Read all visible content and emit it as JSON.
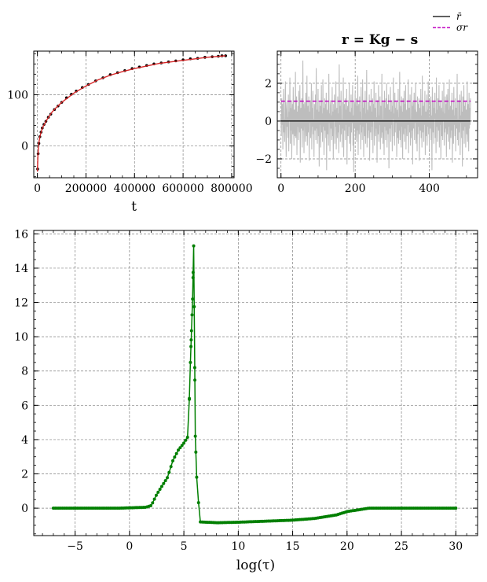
{
  "colors": {
    "data_points": "#000000",
    "fit_line": "#d62728",
    "residual": "#bdbdbd",
    "mean_line": "#000000",
    "sigma_line": "#c000c0",
    "distribution": "#007f00",
    "grid": "#808080"
  },
  "chart_data": [
    {
      "id": "data-fit",
      "type": "line",
      "xlabel": "t",
      "ylabel": "",
      "xlim": [
        -15000,
        810000
      ],
      "ylim": [
        -62,
        185
      ],
      "xticks": [
        0,
        200000,
        400000,
        600000,
        800000
      ],
      "xtick_labels": [
        "0",
        "200000",
        "400000",
        "600000",
        "800000"
      ],
      "yticks": [
        0,
        100
      ],
      "ytick_labels": [
        "0",
        "100"
      ],
      "grid": true,
      "series": [
        {
          "kind": "points",
          "x": [
            1000,
            3000,
            6000,
            10000,
            15000,
            20000,
            27000,
            35000,
            45000,
            55000,
            70000,
            85000,
            100000,
            120000,
            140000,
            160000,
            185000,
            210000,
            240000,
            270000,
            300000,
            330000,
            360000,
            390000,
            420000,
            450000,
            480000,
            510000,
            540000,
            570000,
            600000,
            630000,
            660000,
            690000,
            720000,
            745000,
            760000,
            775000
          ],
          "y": [
            -45,
            -15,
            5,
            18,
            27,
            35,
            42,
            48,
            56,
            62,
            71,
            78,
            85,
            94,
            101,
            107,
            114,
            120,
            127,
            133,
            139,
            143,
            147,
            151,
            154,
            157,
            160,
            162,
            164,
            166,
            168,
            170,
            171,
            173,
            174,
            175,
            176,
            176
          ]
        },
        {
          "kind": "fit",
          "x": [
            0,
            2000,
            5000,
            10000,
            20000,
            40000,
            60000,
            80000,
            100000,
            150000,
            200000,
            250000,
            300000,
            350000,
            400000,
            450000,
            500000,
            550000,
            600000,
            650000,
            700000,
            750000,
            775000
          ],
          "y": [
            -50,
            -20,
            3,
            18,
            35,
            52,
            66,
            76,
            85,
            103,
            117,
            129,
            138,
            145,
            151,
            156,
            161,
            164,
            167,
            170,
            173,
            175,
            176
          ]
        }
      ]
    },
    {
      "id": "residuals",
      "type": "line",
      "title": "r = Kg − s",
      "xlabel": "",
      "ylabel": "",
      "xlim": [
        -10,
        530
      ],
      "ylim": [
        -3.0,
        3.7
      ],
      "xticks": [
        0,
        200,
        400
      ],
      "xtick_labels": [
        "0",
        "200",
        "400"
      ],
      "yticks": [
        -2,
        0,
        2
      ],
      "ytick_labels": [
        "−2",
        "0",
        "2"
      ],
      "grid": true,
      "n_points": 512,
      "mean": 0.0,
      "sigma": 1.05,
      "legend": {
        "placement": "top-right",
        "entries": [
          "r̄",
          "σr"
        ]
      },
      "residual_values": [
        0.3,
        -0.8,
        1.2,
        -0.2,
        0.9,
        -1.5,
        0.4,
        1.7,
        -0.6,
        0.1,
        -1.1,
        0.8,
        2.1,
        -0.4,
        -1.9,
        0.6,
        1.0,
        -0.3,
        0.2,
        -0.9,
        1.4,
        -1.6,
        0.5,
        0.0,
        2.3,
        -1.2,
        0.7,
        -0.5,
        1.1,
        -2.0,
        0.3,
        0.9,
        -0.7,
        1.8,
        -0.1,
        -1.3,
        0.6,
        0.4,
        -0.8,
        2.6,
        -0.9,
        0.2,
        1.3,
        -1.8,
        0.5,
        -0.3,
        0.8,
        -1.0,
        1.6,
        0.1,
        -0.6,
        1.9,
        -2.2,
        0.4,
        0.7,
        -0.4,
        1.2,
        -1.4,
        0.0,
        3.2,
        -0.5,
        0.9,
        -1.7,
        0.3,
        1.0,
        -0.2,
        -1.1,
        1.5,
        0.6,
        -0.8,
        2.4,
        -1.3,
        0.2,
        0.8,
        -0.6,
        1.3,
        -2.1,
        0.5,
        -0.1,
        1.1,
        -0.9,
        0.4,
        2.0,
        -1.5,
        0.7,
        -0.3,
        1.6,
        -0.7,
        0.1,
        -1.9,
        0.9,
        0.3,
        -0.5,
        1.4,
        -1.0,
        2.8,
        -0.4,
        0.6,
        -1.2,
        0.2,
        1.7,
        -0.8,
        0.5,
        -2.4,
        1.0,
        -0.2,
        0.8,
        -1.4,
        0.3,
        1.9,
        -0.6,
        0.4,
        -1.1,
        2.2,
        -0.3,
        0.7,
        -1.8,
        0.1,
        1.2,
        -0.5,
        0.9,
        -0.9,
        1.5,
        -2.6,
        0.6,
        0.2,
        -0.7,
        1.0,
        -1.3,
        2.5,
        -0.1,
        0.4,
        -1.6,
        0.8,
        1.1,
        -0.4,
        0.3,
        -1.0,
        1.8,
        -0.8,
        0.5,
        -2.0,
        0.9,
        0.0,
        1.4,
        -1.2,
        0.6,
        -0.3,
        2.1,
        -1.5,
        0.2,
        0.7,
        -0.9,
        1.3,
        -0.6,
        0.4,
        -1.7,
        3.0,
        -0.2,
        0.8,
        -1.1,
        0.5,
        1.6,
        -0.7,
        0.1,
        -1.4,
        1.0,
        -0.4,
        2.3,
        -1.9,
        0.3,
        0.9,
        -0.5,
        1.2,
        -1.0,
        0.6,
        -0.2,
        1.7,
        -2.3,
        0.4,
        0.8,
        -0.8,
        1.1,
        -0.3,
        2.0,
        -1.2,
        0.5,
        0.2,
        -1.6,
        1.4,
        -0.6,
        0.7,
        -0.1,
        1.9,
        -1.3,
        0.3,
        -2.7,
        1.0,
        0.6,
        -0.4,
        1.5,
        -0.9,
        0.2,
        1.2,
        -1.1,
        0.8,
        -0.5,
        2.4,
        -1.8,
        0.4,
        0.9,
        -0.7,
        1.3,
        -0.2,
        0.5,
        -1.5,
        1.8,
        -0.6,
        0.1,
        -1.0,
        2.2,
        -0.3,
        0.7,
        -1.9,
        1.1,
        0.3,
        -0.8,
        1.6,
        -1.2,
        0.4,
        -0.1,
        2.7,
        -1.4,
        0.6,
        0.2,
        -0.9,
        1.0,
        -0.5,
        1.4,
        -2.1,
        0.8,
        0.3,
        -0.6,
        1.7,
        -1.0,
        0.5,
        -0.3,
        1.2,
        -1.7,
        0.9,
        0.0,
        2.1,
        -1.3,
        0.4,
        0.7,
        -0.8,
        1.5,
        -0.4,
        0.2,
        -2.2,
        1.1,
        0.6,
        -0.7,
        1.9,
        -1.1,
        0.3,
        -0.2,
        1.3,
        -1.5,
        0.8,
        0.5,
        -0.9,
        2.5,
        -0.6,
        0.1,
        -1.2,
        1.0,
        0.4,
        -1.8,
        1.6,
        -0.3,
        0.7,
        -1.0,
        1.2,
        -0.5,
        2.0,
        -1.4,
        0.2,
        0.9,
        -0.7,
        1.4,
        -2.5,
        0.6,
        0.3,
        -0.4,
        1.8,
        -1.1,
        0.5,
        -0.2,
        1.1,
        -1.6,
        0.8,
        0.1,
        2.3,
        -0.8,
        0.4,
        -1.3,
        1.5,
        -0.6,
        0.7,
        -0.1,
        1.0,
        -1.9,
        0.3,
        0.6,
        -0.9,
        1.7,
        -1.2,
        0.2,
        -0.5,
        2.6,
        -1.0,
        0.8,
        0.4,
        -1.4,
        1.3,
        -0.3,
        0.5,
        -2.0,
        1.2,
        0.0,
        -0.7,
        1.6,
        -1.1,
        0.9,
        -0.4,
        1.9,
        -1.5,
        0.3,
        0.6,
        -0.8,
        1.1,
        -0.2,
        2.2,
        -1.7,
        0.4,
        0.7,
        -0.6,
        1.4,
        -1.3,
        0.1,
        -0.9,
        1.8,
        -0.5,
        0.8,
        -2.3,
        1.0,
        0.3,
        -0.4,
        1.5,
        -1.0,
        0.6,
        -0.1,
        2.0,
        -1.2,
        0.5,
        0.2,
        -1.6,
        1.3,
        -0.7,
        0.9,
        -0.3,
        1.2,
        -2.1,
        0.4,
        0.7,
        -0.5,
        1.7,
        -0.9,
        0.3,
        -1.4,
        2.4,
        -0.6,
        0.1,
        0.8,
        -1.1,
        1.0,
        -0.2,
        1.6,
        -1.8,
        0.5,
        0.4,
        -0.8,
        1.4,
        -1.3,
        0.6,
        -0.3,
        2.1,
        -0.7,
        0.2,
        -1.5,
        1.1,
        0.9,
        -0.4,
        1.3,
        -1.0,
        0.3,
        -2.6,
        1.8,
        0.5,
        -0.6,
        1.0,
        -1.2,
        0.7,
        0.1,
        1.5,
        -0.9,
        0.4,
        -1.7,
        2.3,
        -0.3,
        0.6,
        -1.1,
        1.2,
        0.2,
        -0.5,
        1.9,
        -1.4,
        0.8,
        -0.2,
        1.1,
        -2.0,
        0.3,
        0.7,
        -0.8,
        1.6,
        -1.0,
        0.5,
        0.0,
        2.0,
        -1.3,
        0.4,
        -0.6,
        1.3,
        -0.4,
        0.9,
        -1.9,
        1.4,
        0.1,
        -0.7,
        1.7,
        -1.1,
        0.6,
        -0.3,
        2.2,
        -1.5,
        0.2,
        0.8,
        -0.9,
        1.0,
        -0.5,
        1.5,
        -2.2,
        0.4,
        0.6,
        -1.2,
        1.8,
        -0.2,
        0.3,
        -0.8,
        1.2,
        -1.6,
        0.7,
        0.5,
        -0.4,
        2.5,
        -1.0,
        0.1,
        -1.3,
        1.1,
        0.9,
        -0.6,
        1.4,
        -1.8,
        0.3,
        -0.1,
        1.6,
        -0.9,
        0.5,
        -2.4,
        1.3,
        0.2,
        -0.5,
        1.9,
        -1.2,
        0.8,
        -0.3,
        1.0,
        -1.4,
        0.6,
        0.4,
        -0.7,
        2.1,
        -1.1,
        0.2,
        0.9,
        -1.6,
        1.5,
        -0.4,
        0.7,
        -0.2,
        1.2,
        -1.9,
        0.5,
        0.3,
        -0.8,
        1.7,
        -1.0,
        0.6,
        -0.1,
        1.4,
        -1.3,
        0.4,
        0.2,
        -0.6,
        1.1,
        -0.5,
        0.8,
        -1.2,
        0.9,
        -0.3
      ]
    },
    {
      "id": "distribution",
      "type": "line",
      "xlabel": "log(τ)",
      "ylabel": "",
      "xlim": [
        -8.8,
        32.0
      ],
      "ylim": [
        -1.6,
        16.2
      ],
      "xticks": [
        -5,
        0,
        5,
        10,
        15,
        20,
        25,
        30
      ],
      "xtick_labels": [
        "−5",
        "0",
        "5",
        "10",
        "15",
        "20",
        "25",
        "30"
      ],
      "yticks": [
        0,
        2,
        4,
        6,
        8,
        10,
        12,
        14,
        16
      ],
      "ytick_labels": [
        "0",
        "2",
        "4",
        "6",
        "8",
        "10",
        "12",
        "14",
        "16"
      ],
      "grid": true,
      "anchors": {
        "x": [
          -7.0,
          -1.0,
          0.0,
          1.5,
          2.0,
          2.5,
          3.0,
          3.5,
          4.0,
          4.5,
          5.0,
          5.4,
          5.6,
          5.8,
          5.9,
          6.0,
          6.05,
          6.2,
          6.5,
          8.0,
          10.0,
          15.0,
          17.0,
          19.0,
          20.0,
          21.0,
          22.0,
          25.0,
          30.0
        ],
        "y": [
          0.0,
          0.0,
          0.02,
          0.05,
          0.15,
          0.8,
          1.3,
          1.8,
          2.8,
          3.4,
          3.8,
          4.2,
          8.5,
          12.2,
          15.3,
          8.2,
          4.2,
          1.4,
          -0.8,
          -0.85,
          -0.82,
          -0.7,
          -0.6,
          -0.4,
          -0.2,
          -0.1,
          0.0,
          0.0,
          0.0
        ]
      },
      "n_points": 220
    }
  ]
}
